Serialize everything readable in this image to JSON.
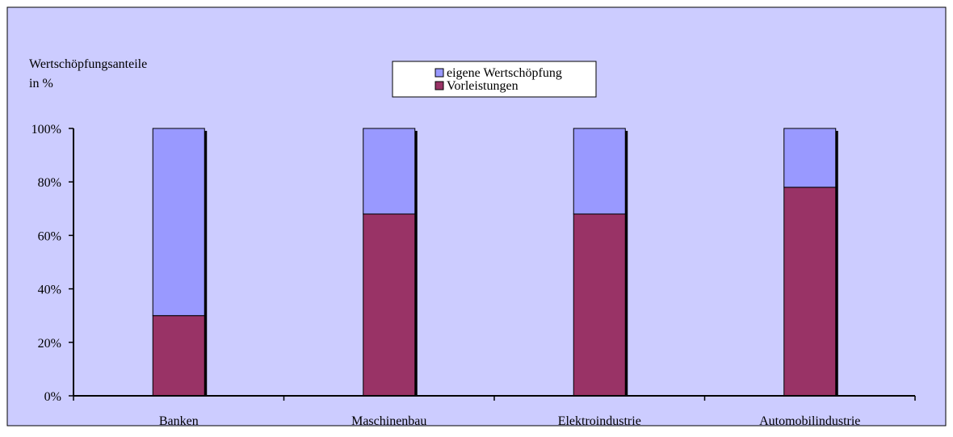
{
  "chart_data": {
    "type": "bar",
    "stacked": true,
    "percent_stacked": true,
    "ylabel": [
      "Wertschöpfungsanteile",
      "in %"
    ],
    "categories": [
      "Banken",
      "Maschinenbau",
      "Elektroindustrie",
      "Automobilindustrie"
    ],
    "series": [
      {
        "name": "Vorleistungen",
        "color": "#993366",
        "values": [
          30,
          68,
          68,
          78
        ]
      },
      {
        "name": "eigene Wertschöpfung",
        "color": "#9999ff",
        "values": [
          70,
          32,
          32,
          22
        ]
      }
    ],
    "ylim": [
      0,
      100
    ],
    "yticks": [
      0,
      20,
      40,
      60,
      80,
      100
    ],
    "ytick_labels": [
      "0%",
      "20%",
      "40%",
      "60%",
      "80%",
      "100%"
    ],
    "legend_order": [
      "eigene Wertschöpfung",
      "Vorleistungen"
    ],
    "legend_position": "top-center",
    "grid": false,
    "background": "#ccccff"
  }
}
